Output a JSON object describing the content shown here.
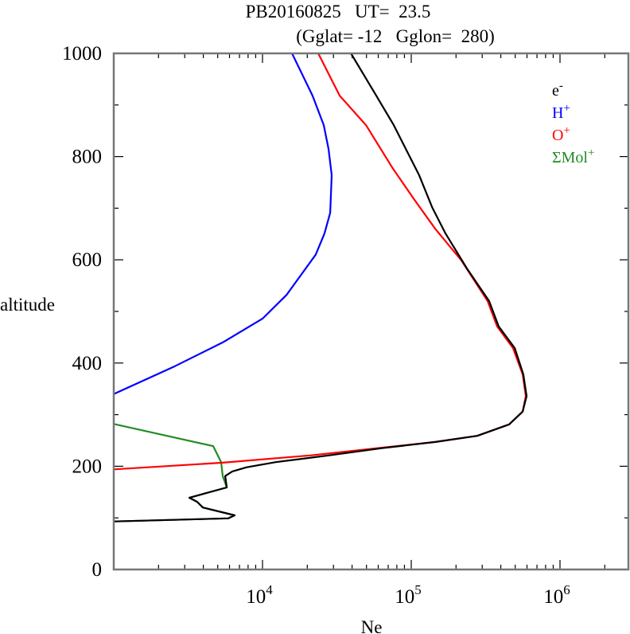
{
  "chart_data": {
    "type": "line",
    "title_line1": "PB20160825   UT=  23.5",
    "title_line2": "(Gglat= -12   Gglon=  280)",
    "xlabel": "Ne",
    "ylabel": "altitude",
    "xscale": "log",
    "xlim": [
      1000,
      3000000
    ],
    "ylim": [
      0,
      1000
    ],
    "x_ticks": [
      {
        "value": 10000,
        "base": "10",
        "exp": "4"
      },
      {
        "value": 100000,
        "base": "10",
        "exp": "5"
      },
      {
        "value": 1000000,
        "base": "10",
        "exp": "6"
      }
    ],
    "y_ticks": [
      0,
      200,
      400,
      600,
      800,
      1000
    ],
    "y_minor_step": 100,
    "grid": false,
    "legend_placement": "top-right",
    "series": [
      {
        "name": "e",
        "sup": "-",
        "color": "#000000",
        "points": [
          [
            39300,
            1000
          ],
          [
            58200,
            918
          ],
          [
            76300,
            861
          ],
          [
            91800,
            815
          ],
          [
            113000,
            764
          ],
          [
            138000,
            702
          ],
          [
            170000,
            651
          ],
          [
            237000,
            583
          ],
          [
            334000,
            520
          ],
          [
            387000,
            471
          ],
          [
            496000,
            429
          ],
          [
            567000,
            378
          ],
          [
            596000,
            336
          ],
          [
            561000,
            306
          ],
          [
            455000,
            281
          ],
          [
            278000,
            259
          ],
          [
            145000,
            247
          ],
          [
            63400,
            235
          ],
          [
            27800,
            221
          ],
          [
            12300,
            208
          ],
          [
            7820,
            198
          ],
          [
            6260,
            190
          ],
          [
            5610,
            181
          ],
          [
            5750,
            159
          ],
          [
            3220,
            139
          ],
          [
            3640,
            131
          ],
          [
            3970,
            120
          ],
          [
            6500,
            105
          ],
          [
            5890,
            99
          ],
          [
            1000,
            93
          ]
        ]
      },
      {
        "name": "H",
        "sup": "+",
        "color": "#0000ff",
        "points": [
          [
            15800,
            1000
          ],
          [
            21700,
            918
          ],
          [
            25800,
            861
          ],
          [
            27800,
            815
          ],
          [
            29200,
            764
          ],
          [
            28500,
            691
          ],
          [
            26100,
            651
          ],
          [
            22800,
            610
          ],
          [
            18500,
            574
          ],
          [
            14500,
            532
          ],
          [
            10000,
            486
          ],
          [
            5400,
            440
          ],
          [
            2580,
            394
          ],
          [
            1000,
            340
          ]
        ]
      },
      {
        "name": "O",
        "sup": "+",
        "color": "#ff0000",
        "points": [
          [
            23700,
            1000
          ],
          [
            33000,
            918
          ],
          [
            49600,
            861
          ],
          [
            74400,
            779
          ],
          [
            104000,
            718
          ],
          [
            145000,
            660
          ],
          [
            217000,
            599
          ],
          [
            326000,
            520
          ],
          [
            378000,
            471
          ],
          [
            483000,
            429
          ],
          [
            561000,
            378
          ],
          [
            589000,
            336
          ],
          [
            561000,
            306
          ],
          [
            455000,
            281
          ],
          [
            278000,
            259
          ],
          [
            145000,
            247
          ],
          [
            63400,
            236
          ],
          [
            20900,
            221
          ],
          [
            5400,
            207
          ],
          [
            1000,
            194
          ]
        ]
      },
      {
        "name": "ΣMol",
        "sup": "+",
        "color": "#228b22",
        "points": [
          [
            1000,
            282
          ],
          [
            4660,
            239
          ],
          [
            5270,
            208
          ],
          [
            5400,
            181
          ],
          [
            5750,
            159
          ],
          [
            3220,
            139
          ],
          [
            3640,
            131
          ],
          [
            3970,
            120
          ],
          [
            6500,
            105
          ],
          [
            5890,
            99
          ],
          [
            1000,
            93
          ]
        ]
      }
    ]
  }
}
